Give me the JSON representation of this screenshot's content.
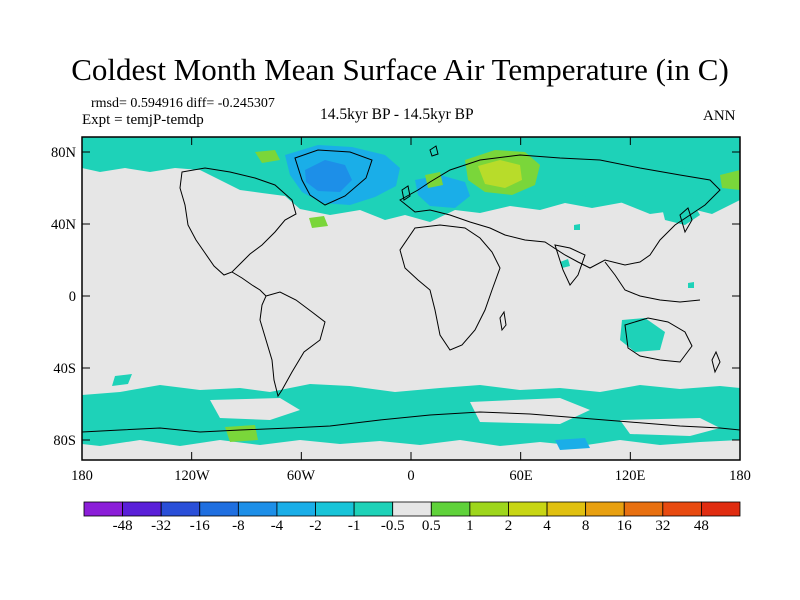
{
  "title": "Coldest Month Mean Surface Air Temperature (in C)",
  "stats": "rmsd= 0.594916  diff= -0.245307",
  "experiment": "Expt = temjP-temdp",
  "period": "14.5kyr BP - 14.5kyr BP",
  "season": "ANN",
  "lat_labels": [
    "80N",
    "40N",
    "0",
    "40S",
    "80S"
  ],
  "lon_labels": [
    "180",
    "120W",
    "60W",
    "0",
    "60E",
    "120E",
    "180"
  ],
  "colorbar": {
    "labels": [
      "-48",
      "-32",
      "-16",
      "-8",
      "-4",
      "-2",
      "-1",
      "-0.5",
      "0.5",
      "1",
      "2",
      "4",
      "8",
      "16",
      "32",
      "48"
    ],
    "colors": [
      "#8b1ed8",
      "#5a1fd8",
      "#2a4fd8",
      "#1f6fe0",
      "#1d8fe8",
      "#1aaee8",
      "#18c4d8",
      "#1ed2b8",
      "#e6e6e6",
      "#5fd23a",
      "#9ed61c",
      "#c8d614",
      "#e0c010",
      "#e8a010",
      "#e87010",
      "#e84a10",
      "#e02c10"
    ]
  },
  "colors": {
    "background": "#e6e6e6",
    "coast": "#000000",
    "cyan": "#1ed2b8",
    "light_cyan": "#2ad6c8",
    "blue": "#1aaee8",
    "deep_blue": "#1d8fe8",
    "green": "#7ad63a",
    "yellow_green": "#b8dc2a"
  }
}
